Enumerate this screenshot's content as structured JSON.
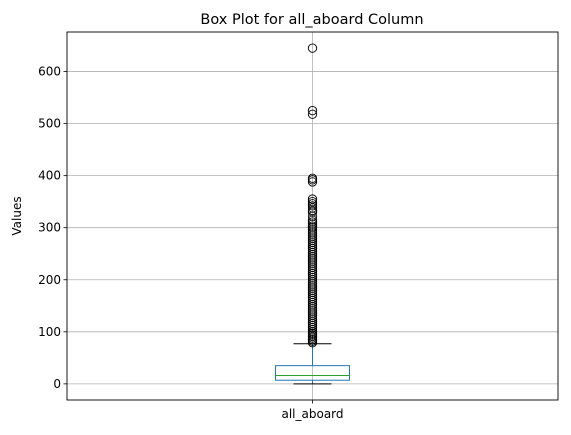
{
  "chart_data": {
    "type": "box",
    "title": "Box Plot for all_aboard Column",
    "xlabel": "",
    "ylabel": "Values",
    "categories": [
      "all_aboard"
    ],
    "ylim": [
      -31,
      676
    ],
    "yticks": [
      0,
      100,
      200,
      300,
      400,
      500,
      600
    ],
    "ytick_labels": [
      "0",
      "100",
      "200",
      "300",
      "400",
      "500",
      "600"
    ],
    "grid": true,
    "colors": {
      "box": "#1f77b4",
      "median": "#2ca02c",
      "whisker": "#1f77b4",
      "cap": "#000000",
      "flier": "#000000",
      "grid": "#b0b0b0"
    },
    "boxes": [
      {
        "name": "all_aboard",
        "whislo": 0,
        "q1": 7,
        "median": 16,
        "q3": 35,
        "whishi": 77,
        "fliers": [
          645,
          525,
          518,
          395,
          392,
          388,
          355,
          350,
          346,
          342,
          338,
          333,
          330,
          322,
          315,
          311,
          307,
          303,
          300,
          296,
          292,
          288,
          284,
          280,
          276,
          272,
          268,
          264,
          260,
          256,
          252,
          248,
          244,
          240,
          236,
          232,
          228,
          224,
          220,
          216,
          212,
          208,
          204,
          200,
          196,
          192,
          188,
          184,
          180,
          176,
          172,
          168,
          164,
          160,
          156,
          152,
          148,
          144,
          140,
          136,
          132,
          128,
          124,
          120,
          116,
          112,
          108,
          104,
          100,
          97,
          94,
          91,
          88,
          85,
          82,
          79
        ]
      }
    ]
  }
}
